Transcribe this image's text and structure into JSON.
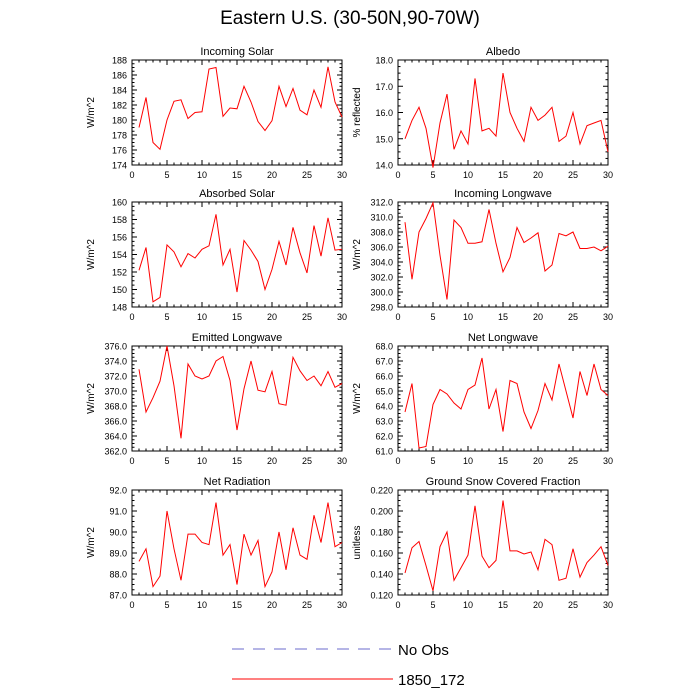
{
  "title": "Eastern U.S. (30-50N,90-70W)",
  "legend": [
    {
      "label": "No Obs",
      "color": "#6b6bcc",
      "dash": "dashed"
    },
    {
      "label": "1850_172",
      "color": "#ff0000",
      "dash": "solid"
    }
  ],
  "chart_data": [
    {
      "type": "line",
      "title": "Incoming Solar",
      "ylabel": "W/m^2",
      "xlim": [
        0,
        30
      ],
      "ylim": [
        174,
        188
      ],
      "xticks": [
        0,
        5,
        10,
        15,
        20,
        25,
        30
      ],
      "yticks": [
        "174",
        "176",
        "178",
        "180",
        "182",
        "184",
        "186",
        "188"
      ],
      "series": [
        {
          "name": "1850_172",
          "color": "#ff0000",
          "x": [
            1,
            2,
            3,
            4,
            5,
            6,
            7,
            8,
            9,
            10,
            11,
            12,
            13,
            14,
            15,
            16,
            17,
            18,
            19,
            20,
            21,
            22,
            23,
            24,
            25,
            26,
            27,
            28,
            29,
            30
          ],
          "y": [
            179.0,
            183.0,
            177.0,
            176.1,
            180.0,
            182.5,
            182.7,
            180.2,
            181.0,
            181.1,
            186.8,
            187.0,
            180.5,
            181.6,
            181.5,
            184.5,
            182.4,
            179.8,
            178.6,
            179.9,
            184.5,
            181.8,
            184.2,
            181.3,
            180.7,
            184.0,
            181.7,
            187.1,
            182.4,
            180.4
          ]
        }
      ]
    },
    {
      "type": "line",
      "title": "Albedo",
      "ylabel": "% reflected",
      "xlim": [
        0,
        30
      ],
      "ylim": [
        14,
        18
      ],
      "xticks": [
        0,
        5,
        10,
        15,
        20,
        25,
        30
      ],
      "yticks": [
        "14.0",
        "15.0",
        "16.0",
        "17.0",
        "18.0"
      ],
      "series": [
        {
          "name": "1850_172",
          "color": "#ff0000",
          "x": [
            1,
            2,
            3,
            4,
            5,
            6,
            7,
            8,
            9,
            10,
            11,
            12,
            13,
            14,
            15,
            16,
            17,
            18,
            19,
            20,
            21,
            22,
            23,
            24,
            25,
            26,
            27,
            28,
            29,
            30
          ],
          "y": [
            15.0,
            15.7,
            16.2,
            15.4,
            13.9,
            15.6,
            16.7,
            14.6,
            15.3,
            14.8,
            17.3,
            15.3,
            15.4,
            15.1,
            17.5,
            16.0,
            15.4,
            14.9,
            16.2,
            15.7,
            15.9,
            16.2,
            14.9,
            15.1,
            16.0,
            14.8,
            15.5,
            15.6,
            15.7,
            14.5
          ]
        }
      ]
    },
    {
      "type": "line",
      "title": "Absorbed Solar",
      "ylabel": "W/m^2",
      "xlim": [
        0,
        30
      ],
      "ylim": [
        148,
        160
      ],
      "xticks": [
        0,
        5,
        10,
        15,
        20,
        25,
        30
      ],
      "yticks": [
        "148",
        "150",
        "152",
        "154",
        "156",
        "158",
        "160"
      ],
      "series": [
        {
          "name": "1850_172",
          "color": "#ff0000",
          "x": [
            1,
            2,
            3,
            4,
            5,
            6,
            7,
            8,
            9,
            10,
            11,
            12,
            13,
            14,
            15,
            16,
            17,
            18,
            19,
            20,
            21,
            22,
            23,
            24,
            25,
            26,
            27,
            28,
            29,
            30
          ],
          "y": [
            152.2,
            154.8,
            148.6,
            149.1,
            155.1,
            154.3,
            152.6,
            154.1,
            153.6,
            154.6,
            155.0,
            158.6,
            152.8,
            154.6,
            149.7,
            155.6,
            154.5,
            153.2,
            150.0,
            152.3,
            155.5,
            152.8,
            157.1,
            154.2,
            151.9,
            157.3,
            153.8,
            158.2,
            154.5,
            154.6
          ]
        }
      ]
    },
    {
      "type": "line",
      "title": "Incoming Longwave",
      "ylabel": "W/m^2",
      "xlim": [
        0,
        30
      ],
      "ylim": [
        298,
        312
      ],
      "xticks": [
        0,
        5,
        10,
        15,
        20,
        25,
        30
      ],
      "yticks": [
        "298.0",
        "300.0",
        "302.0",
        "304.0",
        "306.0",
        "308.0",
        "310.0",
        "312.0"
      ],
      "series": [
        {
          "name": "1850_172",
          "color": "#ff0000",
          "x": [
            1,
            2,
            3,
            4,
            5,
            6,
            7,
            8,
            9,
            10,
            11,
            12,
            13,
            14,
            15,
            16,
            17,
            18,
            19,
            20,
            21,
            22,
            23,
            24,
            25,
            26,
            27,
            28,
            29,
            30
          ],
          "y": [
            309.3,
            301.7,
            308.0,
            309.8,
            311.9,
            304.9,
            299.0,
            309.6,
            308.6,
            306.5,
            306.5,
            306.7,
            311.0,
            306.5,
            302.7,
            304.6,
            308.6,
            306.6,
            307.2,
            307.9,
            302.8,
            303.6,
            307.8,
            307.5,
            308.0,
            305.8,
            305.8,
            306.0,
            305.5,
            306.1
          ]
        }
      ]
    },
    {
      "type": "line",
      "title": "Emitted Longwave",
      "ylabel": "W/m^2",
      "xlim": [
        0,
        30
      ],
      "ylim": [
        362,
        376
      ],
      "xticks": [
        0,
        5,
        10,
        15,
        20,
        25,
        30
      ],
      "yticks": [
        "362.0",
        "364.0",
        "366.0",
        "368.0",
        "370.0",
        "372.0",
        "374.0",
        "376.0"
      ],
      "series": [
        {
          "name": "1850_172",
          "color": "#ff0000",
          "x": [
            1,
            2,
            3,
            4,
            5,
            6,
            7,
            8,
            9,
            10,
            11,
            12,
            13,
            14,
            15,
            16,
            17,
            18,
            19,
            20,
            21,
            22,
            23,
            24,
            25,
            26,
            27,
            28,
            29,
            30
          ],
          "y": [
            372.9,
            367.2,
            369.1,
            371.3,
            376.0,
            370.7,
            363.7,
            373.6,
            372.0,
            371.6,
            372.0,
            374.0,
            374.6,
            371.4,
            364.8,
            370.3,
            374.0,
            370.1,
            369.9,
            372.6,
            368.3,
            368.1,
            374.5,
            372.7,
            371.4,
            372.0,
            370.7,
            372.6,
            370.5,
            371.0
          ]
        }
      ]
    },
    {
      "type": "line",
      "title": "Net Longwave",
      "ylabel": "W/m^2",
      "xlim": [
        0,
        30
      ],
      "ylim": [
        61,
        68
      ],
      "xticks": [
        0,
        5,
        10,
        15,
        20,
        25,
        30
      ],
      "yticks": [
        "61.0",
        "62.0",
        "63.0",
        "64.0",
        "65.0",
        "66.0",
        "67.0",
        "68.0"
      ],
      "series": [
        {
          "name": "1850_172",
          "color": "#ff0000",
          "x": [
            1,
            2,
            3,
            4,
            5,
            6,
            7,
            8,
            9,
            10,
            11,
            12,
            13,
            14,
            15,
            16,
            17,
            18,
            19,
            20,
            21,
            22,
            23,
            24,
            25,
            26,
            27,
            28,
            29,
            30
          ],
          "y": [
            63.6,
            65.5,
            61.2,
            61.3,
            64.1,
            65.1,
            64.8,
            64.2,
            63.8,
            65.1,
            65.4,
            67.2,
            63.8,
            65.1,
            62.3,
            65.7,
            65.5,
            63.6,
            62.5,
            63.7,
            65.5,
            64.4,
            66.8,
            65.0,
            63.2,
            66.3,
            64.7,
            66.8,
            65.1,
            64.7
          ]
        }
      ]
    },
    {
      "type": "line",
      "title": "Net Radiation",
      "ylabel": "W/m^2",
      "xlim": [
        0,
        30
      ],
      "ylim": [
        87,
        92
      ],
      "xticks": [
        0,
        5,
        10,
        15,
        20,
        25,
        30
      ],
      "yticks": [
        "87.0",
        "88.0",
        "89.0",
        "90.0",
        "91.0",
        "92.0"
      ],
      "series": [
        {
          "name": "1850_172",
          "color": "#ff0000",
          "x": [
            1,
            2,
            3,
            4,
            5,
            6,
            7,
            8,
            9,
            10,
            11,
            12,
            13,
            14,
            15,
            16,
            17,
            18,
            19,
            20,
            21,
            22,
            23,
            24,
            25,
            26,
            27,
            28,
            29,
            30
          ],
          "y": [
            88.6,
            89.2,
            87.4,
            87.9,
            91.0,
            89.2,
            87.7,
            89.9,
            89.9,
            89.5,
            89.4,
            91.4,
            88.9,
            89.4,
            87.5,
            89.9,
            88.9,
            89.6,
            87.4,
            88.1,
            90.0,
            88.2,
            90.2,
            88.9,
            88.7,
            90.8,
            89.5,
            91.4,
            89.3,
            89.5
          ]
        }
      ]
    },
    {
      "type": "line",
      "title": "Ground Snow Covered Fraction",
      "ylabel": "unitless",
      "xlim": [
        0,
        30
      ],
      "ylim": [
        0.12,
        0.22
      ],
      "xticks": [
        0,
        5,
        10,
        15,
        20,
        25,
        30
      ],
      "yticks": [
        "0.120",
        "0.140",
        "0.160",
        "0.180",
        "0.200",
        "0.220"
      ],
      "series": [
        {
          "name": "1850_172",
          "color": "#ff0000",
          "x": [
            1,
            2,
            3,
            4,
            5,
            6,
            7,
            8,
            9,
            10,
            11,
            12,
            13,
            14,
            15,
            16,
            17,
            18,
            19,
            20,
            21,
            22,
            23,
            24,
            25,
            26,
            27,
            28,
            29,
            30
          ],
          "y": [
            0.141,
            0.165,
            0.171,
            0.148,
            0.124,
            0.166,
            0.18,
            0.134,
            0.146,
            0.158,
            0.205,
            0.157,
            0.146,
            0.153,
            0.21,
            0.162,
            0.162,
            0.159,
            0.161,
            0.144,
            0.173,
            0.168,
            0.134,
            0.136,
            0.164,
            0.137,
            0.151,
            0.158,
            0.166,
            0.148
          ]
        }
      ]
    }
  ]
}
